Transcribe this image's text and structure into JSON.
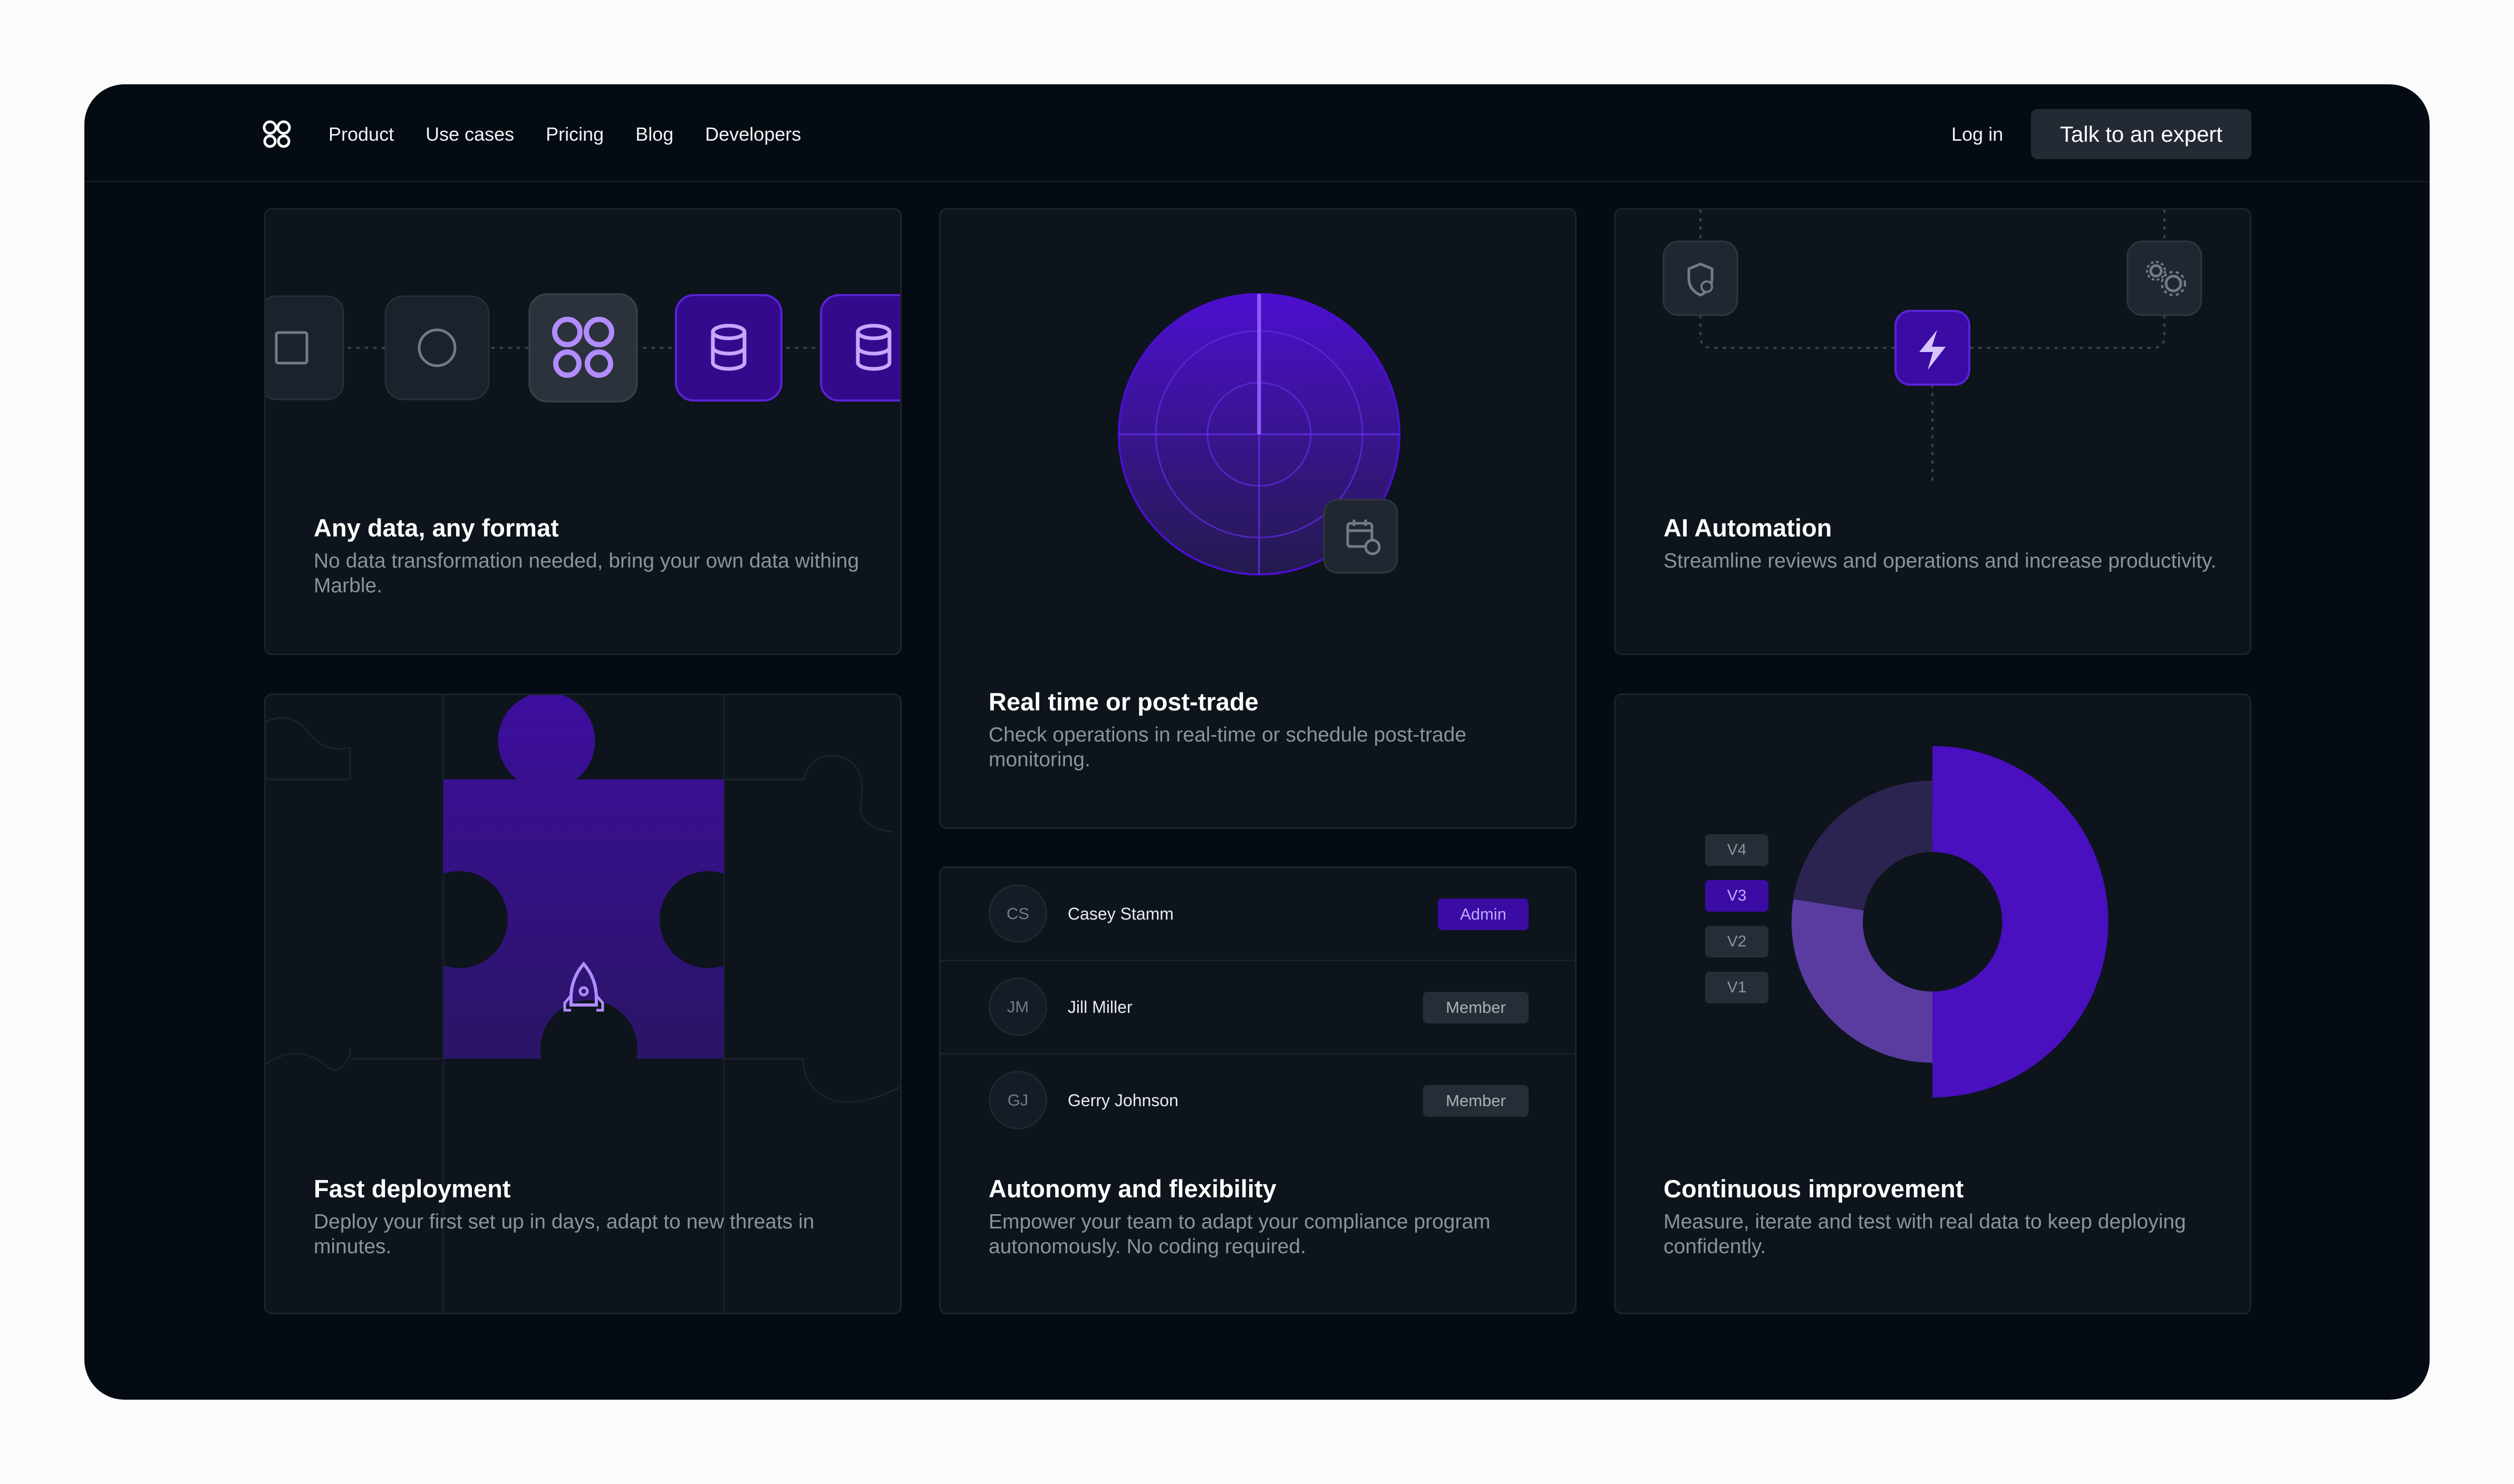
{
  "nav": {
    "links": [
      "Product",
      "Use cases",
      "Pricing",
      "Blog",
      "Developers"
    ],
    "login": "Log in",
    "cta": "Talk to an expert"
  },
  "colors": {
    "accent": "#4c0fcf",
    "accent_light": "#b18cff",
    "card_bg": "#0d141c",
    "page_bg": "#050b12"
  },
  "cards": {
    "data": {
      "title": "Any data, any format",
      "desc": "No data transformation needed, bring your own data withing Marble.",
      "icons": [
        "square-icon",
        "circle-icon",
        "marble-logo-icon",
        "database-icon",
        "database-icon"
      ]
    },
    "realtime": {
      "title": "Real time or post-trade",
      "desc": "Check operations in real-time or schedule post-trade monitoring.",
      "icon": "calendar-clock-icon"
    },
    "automation": {
      "title": "AI Automation",
      "desc": "Streamline reviews and operations and increase productivity.",
      "icons": [
        "shield-icon",
        "lightning-icon",
        "gears-icon"
      ]
    },
    "deploy": {
      "title": "Fast deployment",
      "desc": "Deploy your first set up in days, adapt to new threats in minutes.",
      "icon": "rocket-icon"
    },
    "autonomy": {
      "title": "Autonomy and flexibility",
      "desc": "Empower your team to adapt your compliance program autonomously. No coding required.",
      "users": [
        {
          "initials": "CS",
          "name": "Casey Stamm",
          "role": "Admin"
        },
        {
          "initials": "JM",
          "name": "Jill Miller",
          "role": "Member"
        },
        {
          "initials": "GJ",
          "name": "Gerry Johnson",
          "role": "Member"
        }
      ]
    },
    "improvement": {
      "title": "Continuous improvement",
      "desc": "Measure, iterate and test with real data to keep deploying confidently.",
      "versions": [
        "V4",
        "V3",
        "V2",
        "V1"
      ],
      "selected_version": "V3"
    }
  }
}
